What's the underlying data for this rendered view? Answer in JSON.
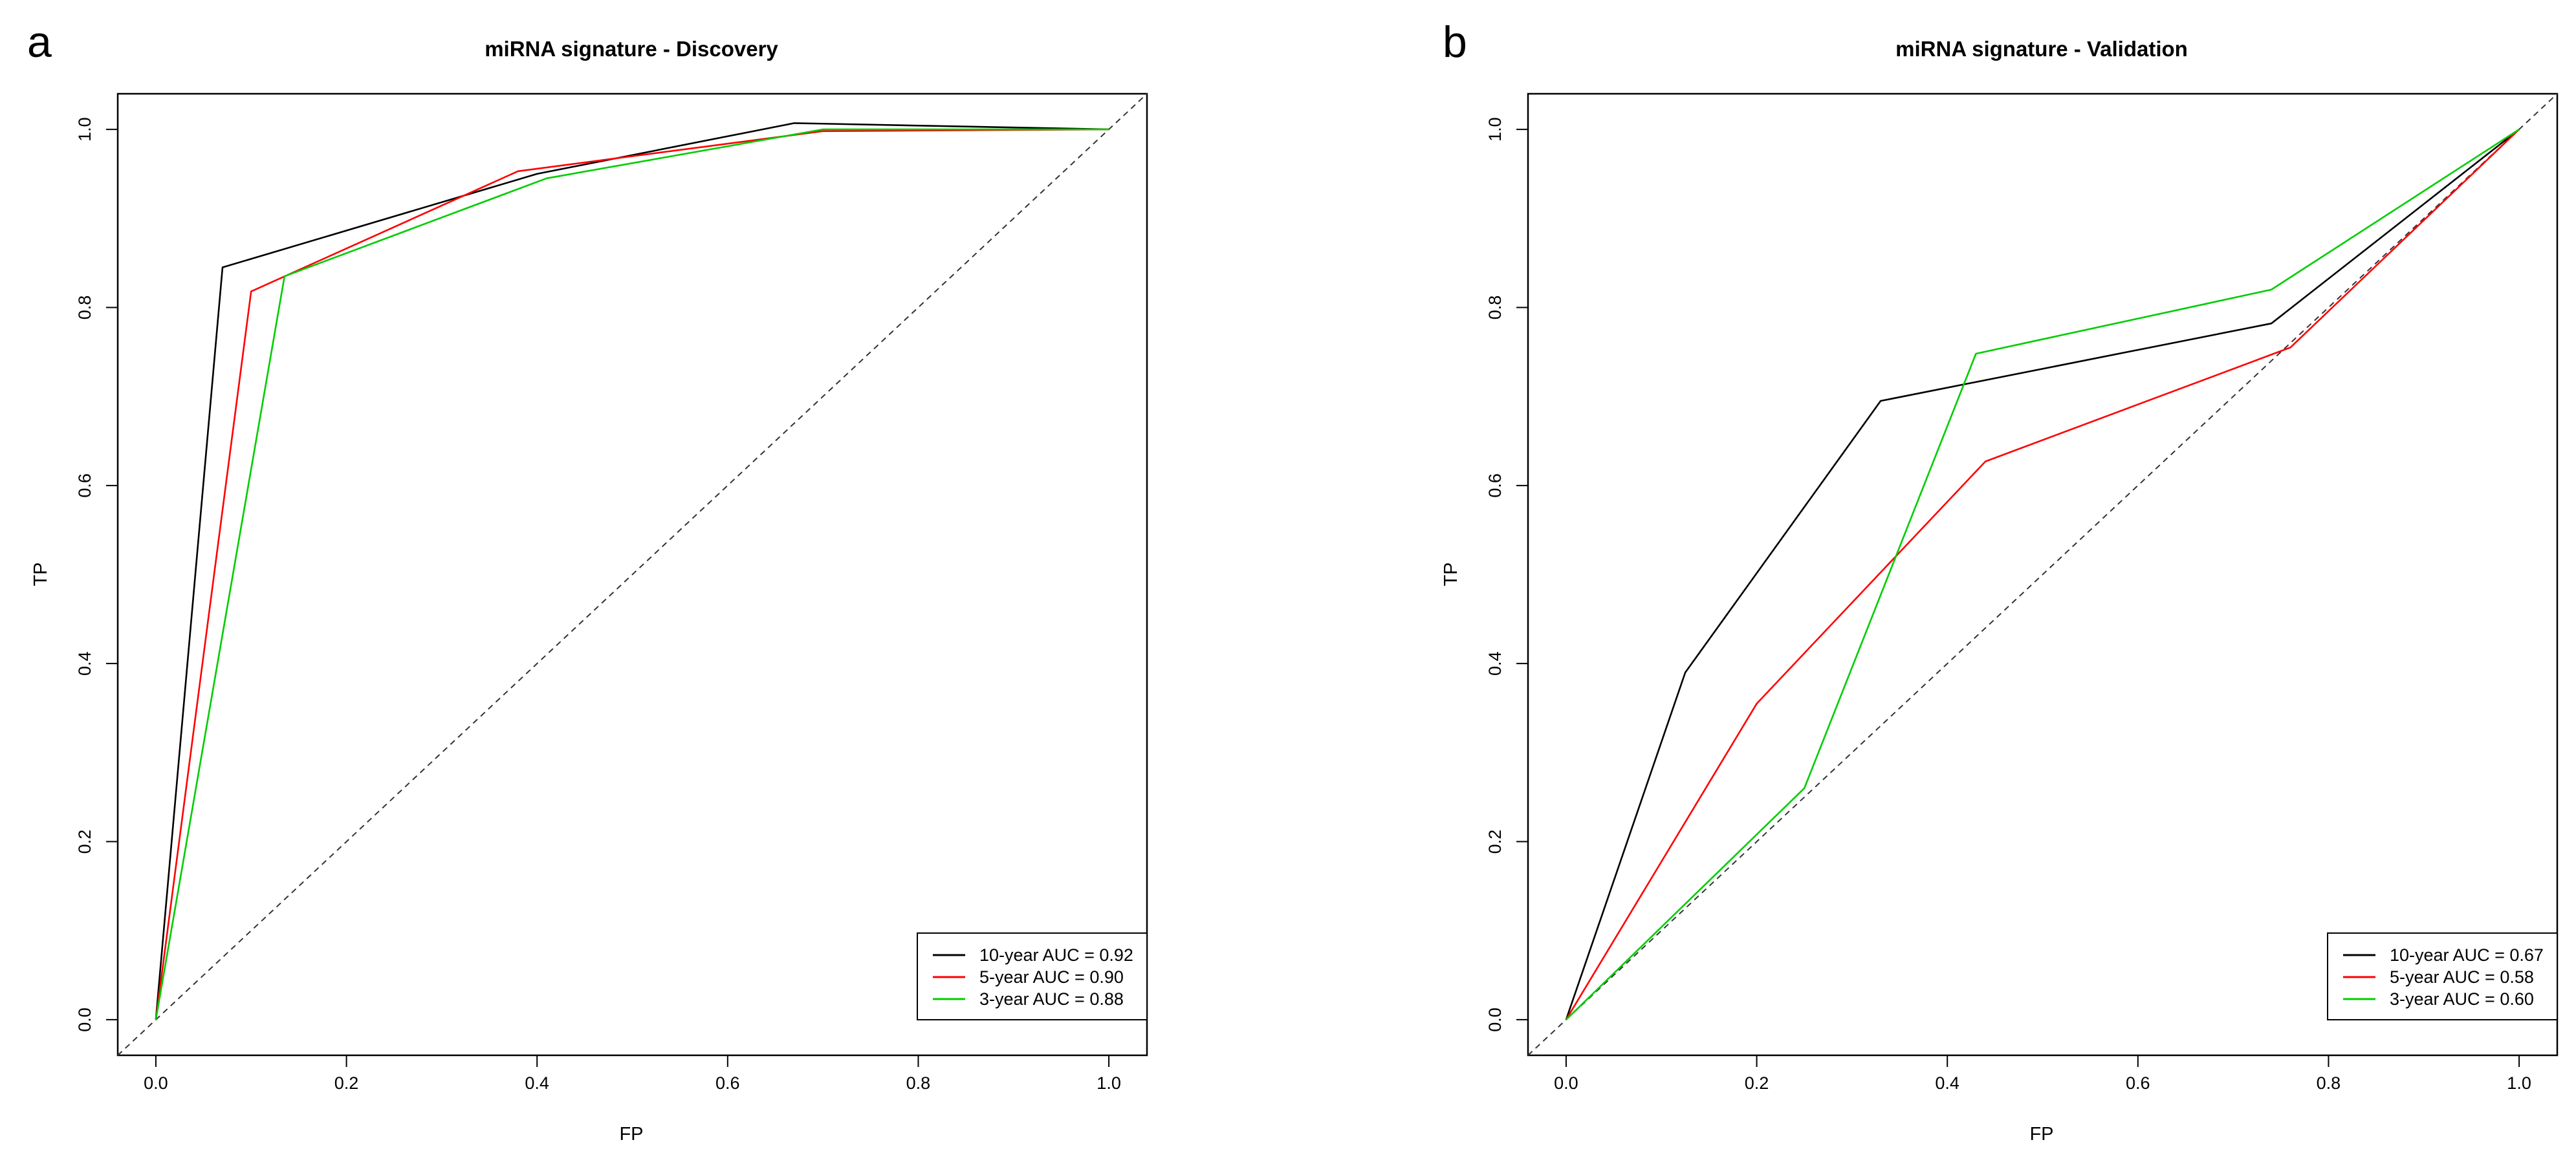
{
  "chart_data": [
    {
      "panel": "a",
      "type": "line",
      "title": "miRNA signature - Discovery",
      "xlabel": "FP",
      "ylabel": "TP",
      "xlim": [
        -0.04,
        1.04
      ],
      "ylim": [
        -0.04,
        1.04
      ],
      "xticks": [
        "0.0",
        "0.2",
        "0.4",
        "0.6",
        "0.8",
        "1.0"
      ],
      "yticks": [
        "0.0",
        "0.2",
        "0.4",
        "0.6",
        "0.8",
        "1.0"
      ],
      "grid": false,
      "legend_position": "bottom-right",
      "reference_line": "dashed diagonal",
      "series": [
        {
          "name": "10-year AUC = 0.92",
          "color": "#000000",
          "x": [
            0.0,
            0.07,
            0.4,
            0.67,
            1.0
          ],
          "y": [
            0.0,
            0.845,
            0.95,
            1.007,
            1.0
          ]
        },
        {
          "name": "5-year AUC = 0.90",
          "color": "#ff0000",
          "x": [
            0.0,
            0.1,
            0.38,
            0.7,
            1.0
          ],
          "y": [
            0.0,
            0.818,
            0.953,
            0.998,
            1.0
          ]
        },
        {
          "name": "3-year AUC = 0.88",
          "color": "#00cd00",
          "x": [
            0.0,
            0.135,
            0.41,
            0.7,
            1.0
          ],
          "y": [
            0.0,
            0.835,
            0.945,
            1.0,
            1.0
          ]
        }
      ]
    },
    {
      "panel": "b",
      "type": "line",
      "title": "miRNA signature - Validation",
      "xlabel": "FP",
      "ylabel": "TP",
      "xlim": [
        -0.04,
        1.04
      ],
      "ylim": [
        -0.04,
        1.04
      ],
      "xticks": [
        "0.0",
        "0.2",
        "0.4",
        "0.6",
        "0.8",
        "1.0"
      ],
      "yticks": [
        "0.0",
        "0.2",
        "0.4",
        "0.6",
        "0.8",
        "1.0"
      ],
      "grid": false,
      "legend_position": "bottom-right",
      "reference_line": "dashed diagonal",
      "series": [
        {
          "name": "10-year AUC = 0.67",
          "color": "#000000",
          "x": [
            0.0,
            0.125,
            0.33,
            0.74,
            1.0
          ],
          "y": [
            0.0,
            0.39,
            0.695,
            0.782,
            1.0
          ]
        },
        {
          "name": "5-year AUC = 0.58",
          "color": "#ff0000",
          "x": [
            0.0,
            0.2,
            0.44,
            0.76,
            1.0
          ],
          "y": [
            0.0,
            0.355,
            0.627,
            0.755,
            1.0
          ]
        },
        {
          "name": "3-year AUC = 0.60",
          "color": "#00cd00",
          "x": [
            0.0,
            0.25,
            0.43,
            0.74,
            1.0
          ],
          "y": [
            0.0,
            0.26,
            0.748,
            0.82,
            1.0
          ]
        }
      ]
    }
  ]
}
